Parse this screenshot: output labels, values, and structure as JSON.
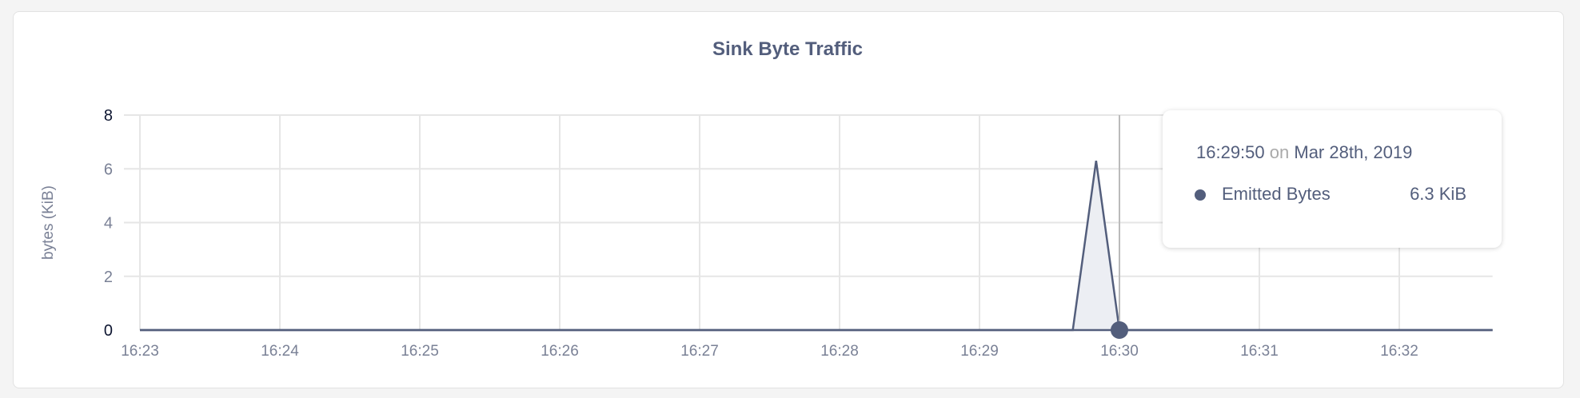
{
  "chart_data": {
    "type": "area",
    "title": "Sink Byte Traffic",
    "xlabel": "",
    "ylabel": "bytes (KiB)",
    "ylim": [
      0,
      8
    ],
    "yticks": [
      "0",
      "2",
      "4",
      "6",
      "8"
    ],
    "xlim": [
      "16:23:00",
      "16:32:40"
    ],
    "xticks": [
      "16:23",
      "16:24",
      "16:25",
      "16:26",
      "16:27",
      "16:28",
      "16:29",
      "16:30",
      "16:31",
      "16:32"
    ],
    "grid": true,
    "series": [
      {
        "name": "Emitted Bytes",
        "color": "#535e7c",
        "x": [
          "16:23:00",
          "16:29:40",
          "16:29:50",
          "16:30:00",
          "16:32:40"
        ],
        "values": [
          0,
          0,
          6.3,
          0,
          0
        ]
      }
    ],
    "hover": {
      "x": "16:30:00",
      "value": 0
    }
  },
  "tooltip": {
    "time": "16:29:50",
    "on": "on",
    "date": "Mar 28th, 2019",
    "series_label": "Emitted Bytes",
    "value": "6.3 KiB"
  }
}
